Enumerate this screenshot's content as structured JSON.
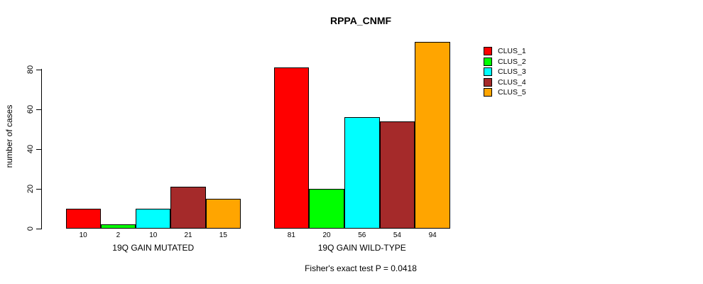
{
  "title": "RPPA_CNMF",
  "footer": "Fisher's exact test P = 0.0418",
  "chart_data": {
    "type": "bar",
    "title": "RPPA_CNMF",
    "xlabel": "",
    "ylabel": "number of cases",
    "yticks": [
      0,
      20,
      40,
      60,
      80
    ],
    "ylim": [
      0,
      94
    ],
    "grid": false,
    "legend_position": "right",
    "annotation": "Fisher's exact test P = 0.0418",
    "series": [
      {
        "name": "CLUS_1",
        "color": "#ff0000",
        "values": [
          10,
          81
        ]
      },
      {
        "name": "CLUS_2",
        "color": "#00ff00",
        "values": [
          2,
          20
        ]
      },
      {
        "name": "CLUS_3",
        "color": "#00ffff",
        "values": [
          10,
          56
        ]
      },
      {
        "name": "CLUS_4",
        "color": "#a52a2a",
        "values": [
          21,
          54
        ]
      },
      {
        "name": "CLUS_5",
        "color": "#ffa500",
        "values": [
          15,
          94
        ]
      }
    ],
    "categories": [
      "19Q GAIN MUTATED",
      "19Q GAIN WILD-TYPE"
    ],
    "groups": [
      {
        "label": "19Q GAIN MUTATED",
        "values": [
          10,
          2,
          10,
          21,
          15
        ]
      },
      {
        "label": "19Q GAIN WILD-TYPE",
        "values": [
          81,
          20,
          56,
          54,
          94
        ]
      }
    ]
  },
  "legend": {
    "items": [
      {
        "label": "CLUS_1",
        "color": "#ff0000"
      },
      {
        "label": "CLUS_2",
        "color": "#00ff00"
      },
      {
        "label": "CLUS_3",
        "color": "#00ffff"
      },
      {
        "label": "CLUS_4",
        "color": "#a52a2a"
      },
      {
        "label": "CLUS_5",
        "color": "#ffa500"
      }
    ]
  }
}
